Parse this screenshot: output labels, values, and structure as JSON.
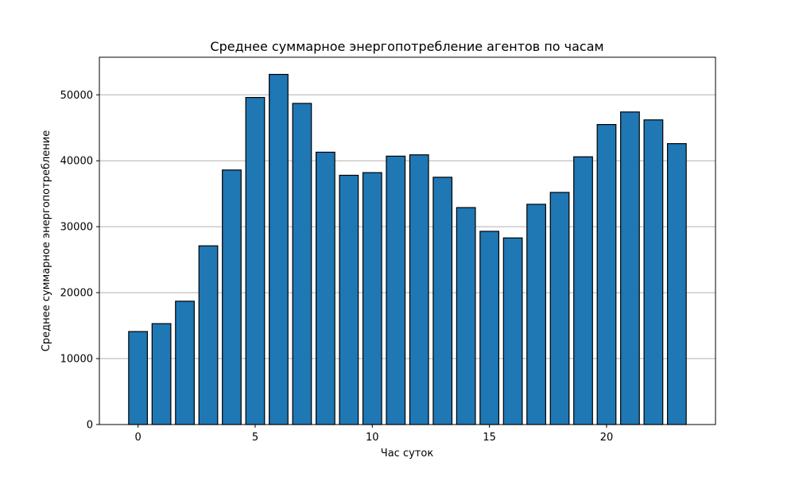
{
  "chart_data": {
    "type": "bar",
    "title": "Среднее суммарное энергопотребление агентов по часам",
    "xlabel": "Час суток",
    "ylabel": "Среднее суммарное энергопотребление",
    "categories": [
      0,
      1,
      2,
      3,
      4,
      5,
      6,
      7,
      8,
      9,
      10,
      11,
      12,
      13,
      14,
      15,
      16,
      17,
      18,
      19,
      20,
      21,
      22,
      23
    ],
    "values": [
      14100,
      15300,
      18700,
      27100,
      38600,
      49600,
      53100,
      48700,
      41300,
      37800,
      38200,
      40700,
      40900,
      37500,
      32900,
      29300,
      28300,
      33400,
      35200,
      40600,
      45500,
      47400,
      46200,
      42600
    ],
    "xlim": [
      -1.65,
      24.65
    ],
    "ylim": [
      0,
      55700
    ],
    "x_ticks": [
      0,
      5,
      10,
      15,
      20
    ],
    "y_ticks": [
      0,
      10000,
      20000,
      30000,
      40000,
      50000
    ],
    "grid": "y",
    "bar_color": "#1f77b4",
    "edge_color": "#000000"
  }
}
